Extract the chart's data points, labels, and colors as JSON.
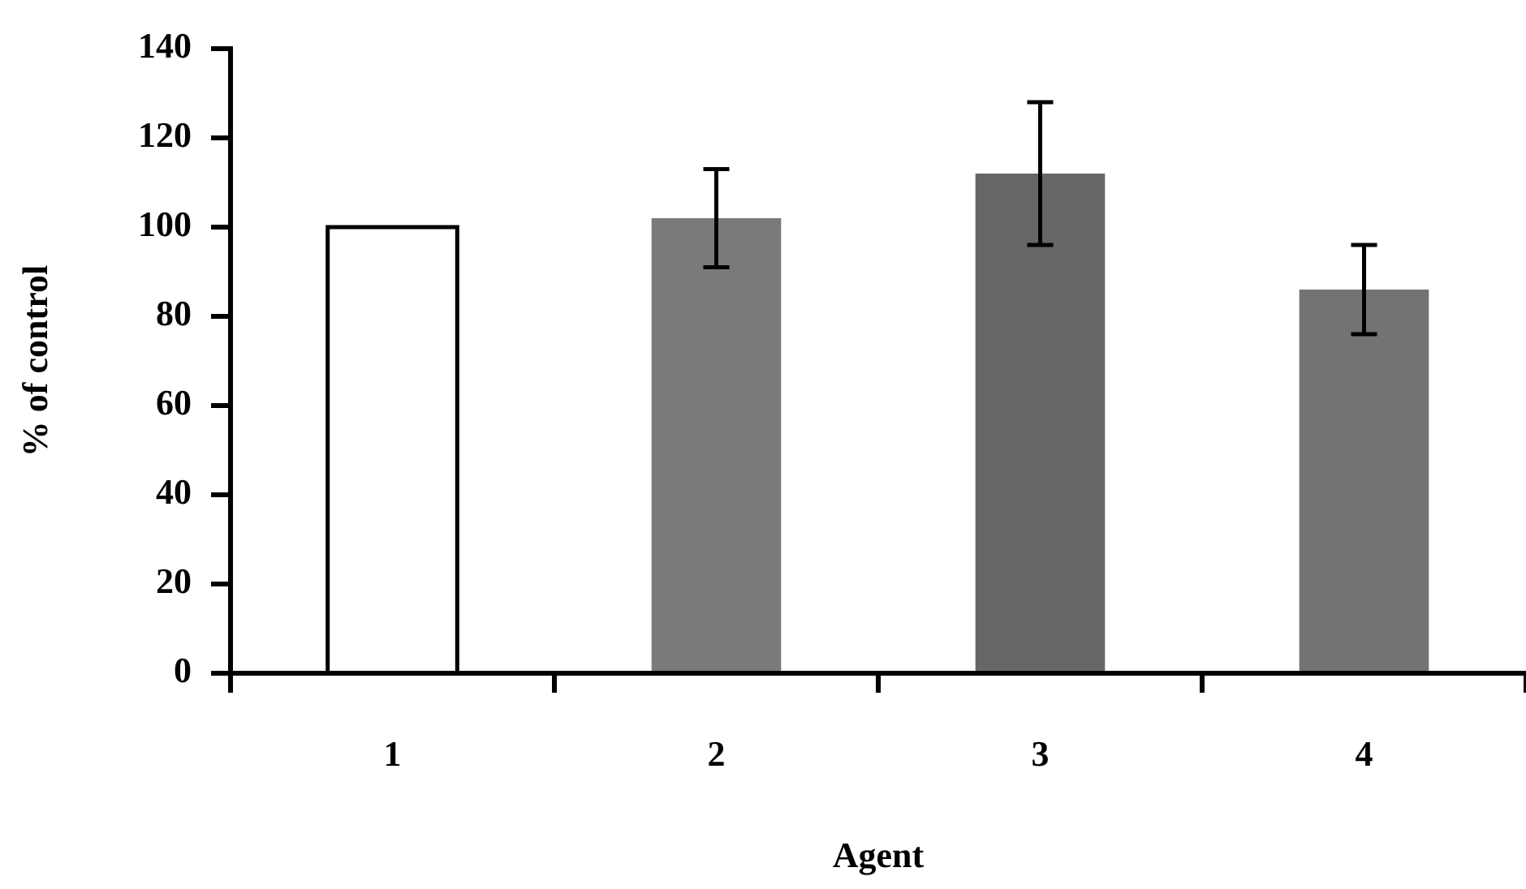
{
  "chart_data": {
    "type": "bar",
    "categories": [
      "1",
      "2",
      "3",
      "4"
    ],
    "values": [
      100,
      102,
      112,
      86
    ],
    "errors": [
      null,
      11,
      16,
      10
    ],
    "colors": [
      "#ffffff",
      "#7a7a7a",
      "#666666",
      "#737373"
    ],
    "xlabel": "Agent",
    "ylabel": "% of control",
    "ylim": [
      0,
      140
    ],
    "yticks": [
      0,
      20,
      40,
      60,
      80,
      100,
      120,
      140
    ]
  }
}
